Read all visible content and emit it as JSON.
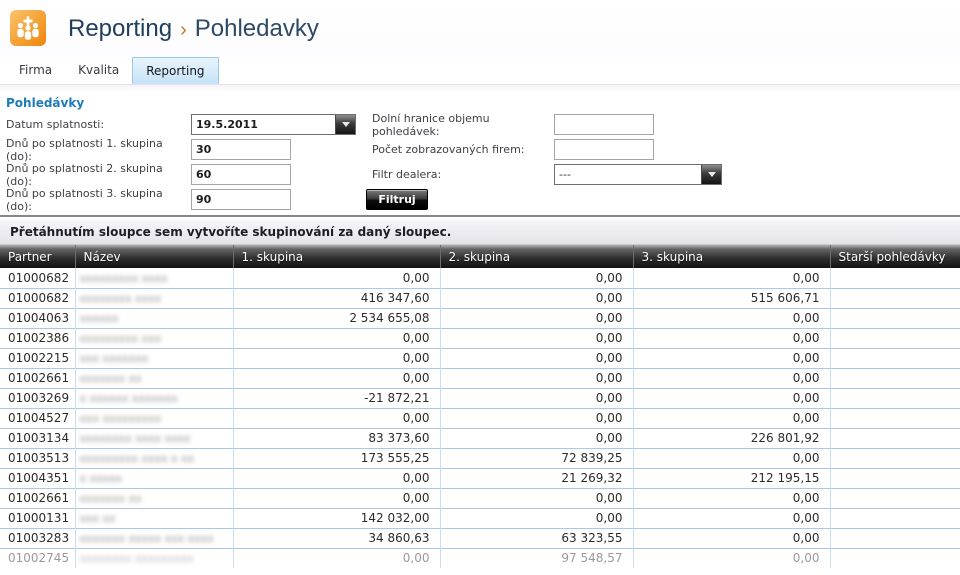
{
  "header": {
    "title": "Reporting",
    "separator": "›",
    "subtitle": "Pohledavky"
  },
  "tabs": [
    {
      "label": "Firma",
      "active": false
    },
    {
      "label": "Kvalita",
      "active": false
    },
    {
      "label": "Reporting",
      "active": true
    }
  ],
  "section": {
    "title": "Pohledávky"
  },
  "filters": {
    "datum_label": "Datum splatnosti:",
    "datum_value": "19.5.2011",
    "skupina1_label": "Dnů po splatnosti 1. skupina (do):",
    "skupina1_value": "30",
    "skupina2_label": "Dnů po splatnosti 2. skupina (do):",
    "skupina2_value": "60",
    "skupina3_label": "Dnů po splatnosti 3. skupina (do):",
    "skupina3_value": "90",
    "dolni_label": "Dolní hranice objemu pohledávek:",
    "dolni_value": "",
    "pocet_label": "Počet zobrazovaných firem:",
    "pocet_value": "",
    "dealer_label": "Filtr dealera:",
    "dealer_value": "---",
    "button": "Filtruj"
  },
  "grid": {
    "group_hint": "Přetáhnutím sloupce sem vytvoříte skupinování za daný sloupec.",
    "columns": [
      "Partner",
      "Název",
      "1. skupina",
      "2. skupina",
      "3. skupina",
      "Starší pohledávky"
    ],
    "rows": [
      {
        "partner": "01000682",
        "nazev": "xxxxxxxxx xxxx",
        "g1": "0,00",
        "g2": "0,00",
        "g3": "0,00",
        "older": "",
        "faded": false
      },
      {
        "partner": "01000682",
        "nazev": "xxxxxxxx xxxx",
        "g1": "416 347,60",
        "g2": "0,00",
        "g3": "515 606,71",
        "older": "",
        "faded": false
      },
      {
        "partner": "01004063",
        "nazev": "xxxxxx",
        "g1": "2 534 655,08",
        "g2": "0,00",
        "g3": "0,00",
        "older": "",
        "faded": false
      },
      {
        "partner": "01002386",
        "nazev": "xxxxxxxxx xxx",
        "g1": "0,00",
        "g2": "0,00",
        "g3": "0,00",
        "older": "",
        "faded": false
      },
      {
        "partner": "01002215",
        "nazev": "xxx xxxxxxx",
        "g1": "0,00",
        "g2": "0,00",
        "g3": "0,00",
        "older": "",
        "faded": false
      },
      {
        "partner": "01002661",
        "nazev": "xxxxxxx xx",
        "g1": "0,00",
        "g2": "0,00",
        "g3": "0,00",
        "older": "",
        "faded": false
      },
      {
        "partner": "01003269",
        "nazev": "x xxxxxx xxxxxxx",
        "g1": "-21 872,21",
        "g2": "0,00",
        "g3": "0,00",
        "older": "",
        "faded": false
      },
      {
        "partner": "01004527",
        "nazev": "xxx xxxxxxxxx",
        "g1": "0,00",
        "g2": "0,00",
        "g3": "0,00",
        "older": "",
        "faded": false
      },
      {
        "partner": "01003134",
        "nazev": "xxxxxxxx xxxx xxxx",
        "g1": "83 373,60",
        "g2": "0,00",
        "g3": "226 801,92",
        "older": "",
        "faded": false
      },
      {
        "partner": "01003513",
        "nazev": "xxxxxxxxx xxxx x xx",
        "g1": "173 555,25",
        "g2": "72 839,25",
        "g3": "0,00",
        "older": "",
        "faded": false
      },
      {
        "partner": "01004351",
        "nazev": "x  xxxxx",
        "g1": "0,00",
        "g2": "21 269,32",
        "g3": "212 195,15",
        "older": "",
        "faded": false
      },
      {
        "partner": "01002661",
        "nazev": "xxxxxxx xx",
        "g1": "0,00",
        "g2": "0,00",
        "g3": "0,00",
        "older": "",
        "faded": false
      },
      {
        "partner": "01000131",
        "nazev": "xxx xx",
        "g1": "142 032,00",
        "g2": "0,00",
        "g3": "0,00",
        "older": "",
        "faded": false
      },
      {
        "partner": "01003283",
        "nazev": "xxxxxxx xxxxx xxx xxxx",
        "g1": "34 860,63",
        "g2": "63 323,55",
        "g3": "0,00",
        "older": "",
        "faded": false
      },
      {
        "partner": "01002745",
        "nazev": "xxxxxxxx xxxxxxxxx",
        "g1": "0,00",
        "g2": "97 548,57",
        "g3": "0,00",
        "older": "",
        "faded": true
      }
    ]
  },
  "colors": {
    "logo_orange": "#f18b12",
    "title_navy": "#20405e",
    "breadcrumb_orange": "#c8782a",
    "section_link_blue": "#1e7cba",
    "tab_active_bg": "#c6e3f7",
    "tab_active_border": "#9cc9ea",
    "button_dark": "#0d0d0d",
    "grid_header_dark": "#121212",
    "row_border_blue": "#abc9e3"
  }
}
